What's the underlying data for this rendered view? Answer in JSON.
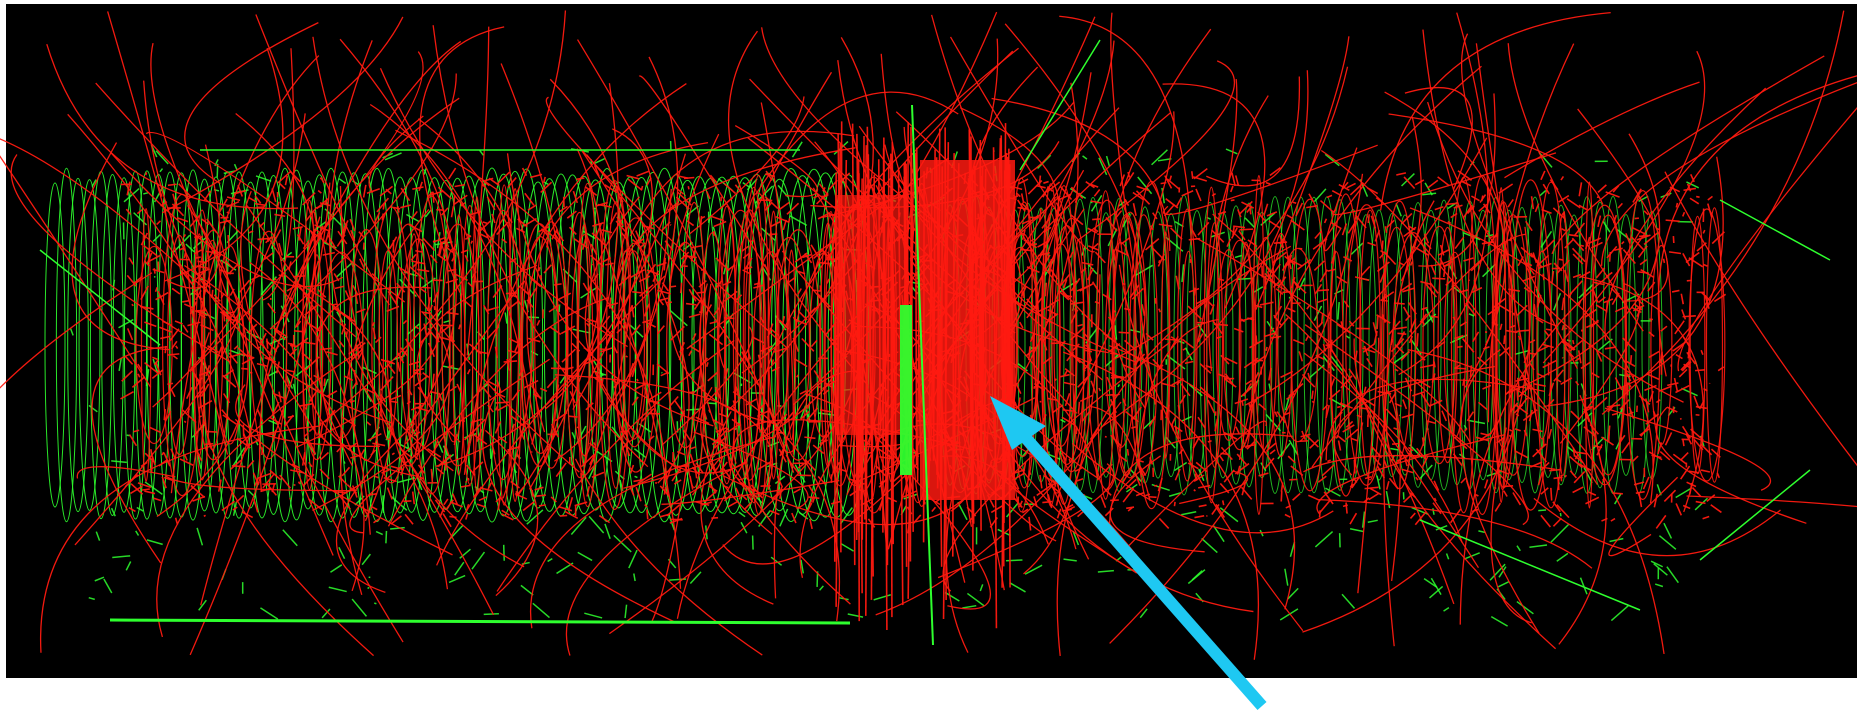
{
  "colors": {
    "background": "#000000",
    "track_red": "#ff1a10",
    "track_green": "#2eff2e",
    "arrow": "#1ec8f2",
    "margin": "#ffffff"
  },
  "image": {
    "subject": "particle-track-event-display",
    "arrow_icon": "arrow-pointer-icon"
  }
}
